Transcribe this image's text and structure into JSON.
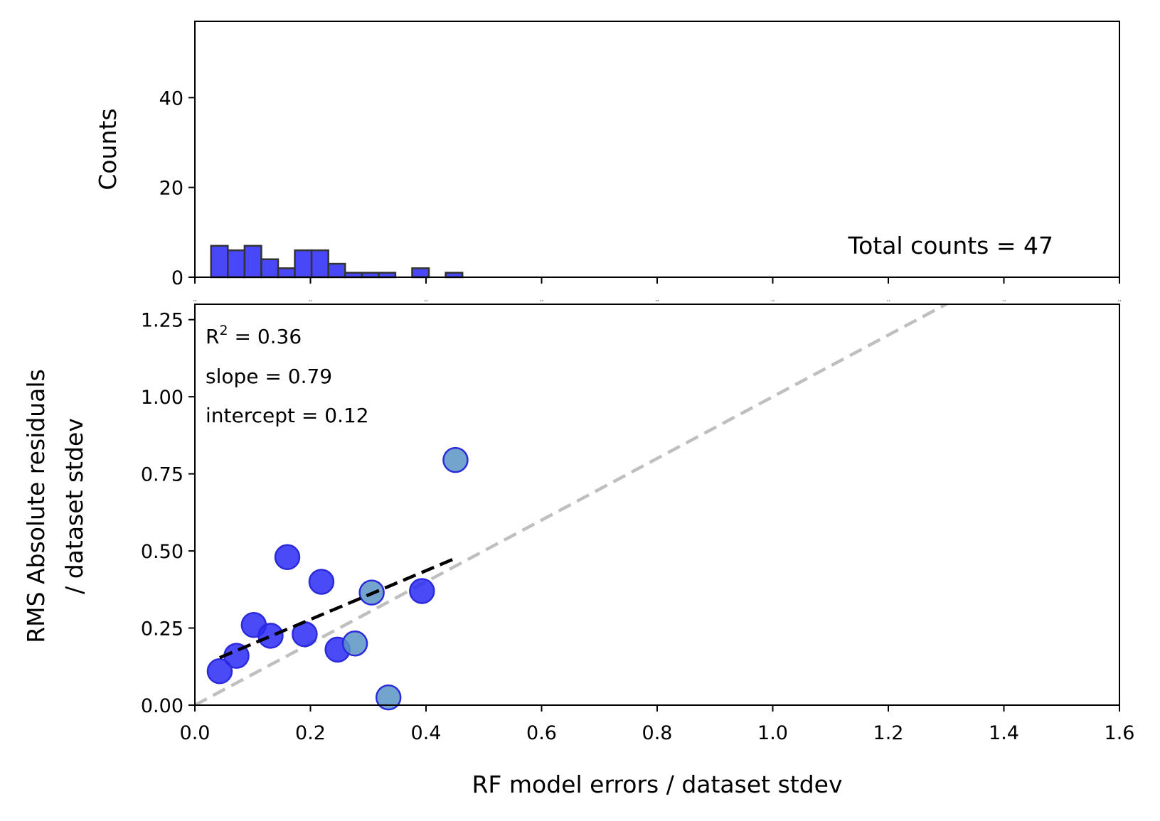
{
  "chart_data": [
    {
      "type": "bar",
      "panel": "histogram",
      "ylabel": "Counts",
      "xlim": [
        0,
        1.6
      ],
      "ylim": [
        0,
        57
      ],
      "yticks": [
        0,
        20,
        40
      ],
      "xticks": [
        0.0,
        0.2,
        0.4,
        0.6,
        0.8,
        1.0,
        1.2,
        1.4,
        1.6
      ],
      "xtick_labels": [
        "0.0",
        "0.2",
        "0.4",
        "0.6",
        "0.8",
        "1.0",
        "1.2",
        "1.4",
        "1.6"
      ],
      "bins": [
        {
          "x0": 0.028,
          "x1": 0.057,
          "count": 7
        },
        {
          "x0": 0.057,
          "x1": 0.086,
          "count": 6
        },
        {
          "x0": 0.086,
          "x1": 0.115,
          "count": 7
        },
        {
          "x0": 0.115,
          "x1": 0.144,
          "count": 4
        },
        {
          "x0": 0.144,
          "x1": 0.173,
          "count": 2
        },
        {
          "x0": 0.173,
          "x1": 0.202,
          "count": 6
        },
        {
          "x0": 0.202,
          "x1": 0.231,
          "count": 6
        },
        {
          "x0": 0.231,
          "x1": 0.26,
          "count": 3
        },
        {
          "x0": 0.26,
          "x1": 0.289,
          "count": 1
        },
        {
          "x0": 0.289,
          "x1": 0.318,
          "count": 1
        },
        {
          "x0": 0.318,
          "x1": 0.347,
          "count": 1
        },
        {
          "x0": 0.347,
          "x1": 0.376,
          "count": 0
        },
        {
          "x0": 0.376,
          "x1": 0.405,
          "count": 2
        },
        {
          "x0": 0.405,
          "x1": 0.434,
          "count": 0
        },
        {
          "x0": 0.434,
          "x1": 0.463,
          "count": 1
        }
      ],
      "annotation": "Total counts = 47",
      "colors": {
        "bar_fill": "#4848f8",
        "bar_edge": "#333333"
      }
    },
    {
      "type": "scatter",
      "panel": "calibration",
      "xlabel": "RF model errors / dataset stdev",
      "ylabel_line1": "RMS Absolute residuals",
      "ylabel_line2": "/ dataset stdev",
      "xlim": [
        0,
        1.6
      ],
      "ylim": [
        0,
        1.3
      ],
      "xticks": [
        0.0,
        0.2,
        0.4,
        0.6,
        0.8,
        1.0,
        1.2,
        1.4,
        1.6
      ],
      "xtick_labels": [
        "0.0",
        "0.2",
        "0.4",
        "0.6",
        "0.8",
        "1.0",
        "1.2",
        "1.4",
        "1.6"
      ],
      "yticks": [
        0.0,
        0.25,
        0.5,
        0.75,
        1.0,
        1.25
      ],
      "ytick_labels": [
        "0.00",
        "0.25",
        "0.50",
        "0.75",
        "1.00",
        "1.25"
      ],
      "points": [
        {
          "x": 0.043,
          "y": 0.11,
          "group": "blue"
        },
        {
          "x": 0.072,
          "y": 0.16,
          "group": "blue"
        },
        {
          "x": 0.102,
          "y": 0.26,
          "group": "blue"
        },
        {
          "x": 0.131,
          "y": 0.225,
          "group": "blue"
        },
        {
          "x": 0.16,
          "y": 0.48,
          "group": "blue"
        },
        {
          "x": 0.19,
          "y": 0.23,
          "group": "blue"
        },
        {
          "x": 0.219,
          "y": 0.4,
          "group": "blue"
        },
        {
          "x": 0.247,
          "y": 0.18,
          "group": "blue"
        },
        {
          "x": 0.277,
          "y": 0.2,
          "group": "steel"
        },
        {
          "x": 0.306,
          "y": 0.365,
          "group": "steel"
        },
        {
          "x": 0.335,
          "y": 0.025,
          "group": "steel"
        },
        {
          "x": 0.393,
          "y": 0.37,
          "group": "blue"
        },
        {
          "x": 0.451,
          "y": 0.795,
          "group": "steel"
        }
      ],
      "fit_line": {
        "x0": 0.043,
        "x1": 0.451,
        "slope": 0.79,
        "intercept": 0.12
      },
      "identity_line": true,
      "annotations": {
        "r2_label": "R",
        "r2_sup": "2",
        "r2_value": " = 0.36",
        "slope": "slope = 0.79",
        "intercept": "intercept = 0.12"
      },
      "colors": {
        "blue_fill": "#2a2af5",
        "blue_edge": "#2b2bdc",
        "steel_fill": "#5a94c6",
        "steel_edge": "#2b2bdc",
        "fit_line": "#000000",
        "identity_line": "#bfbfbf"
      }
    }
  ]
}
